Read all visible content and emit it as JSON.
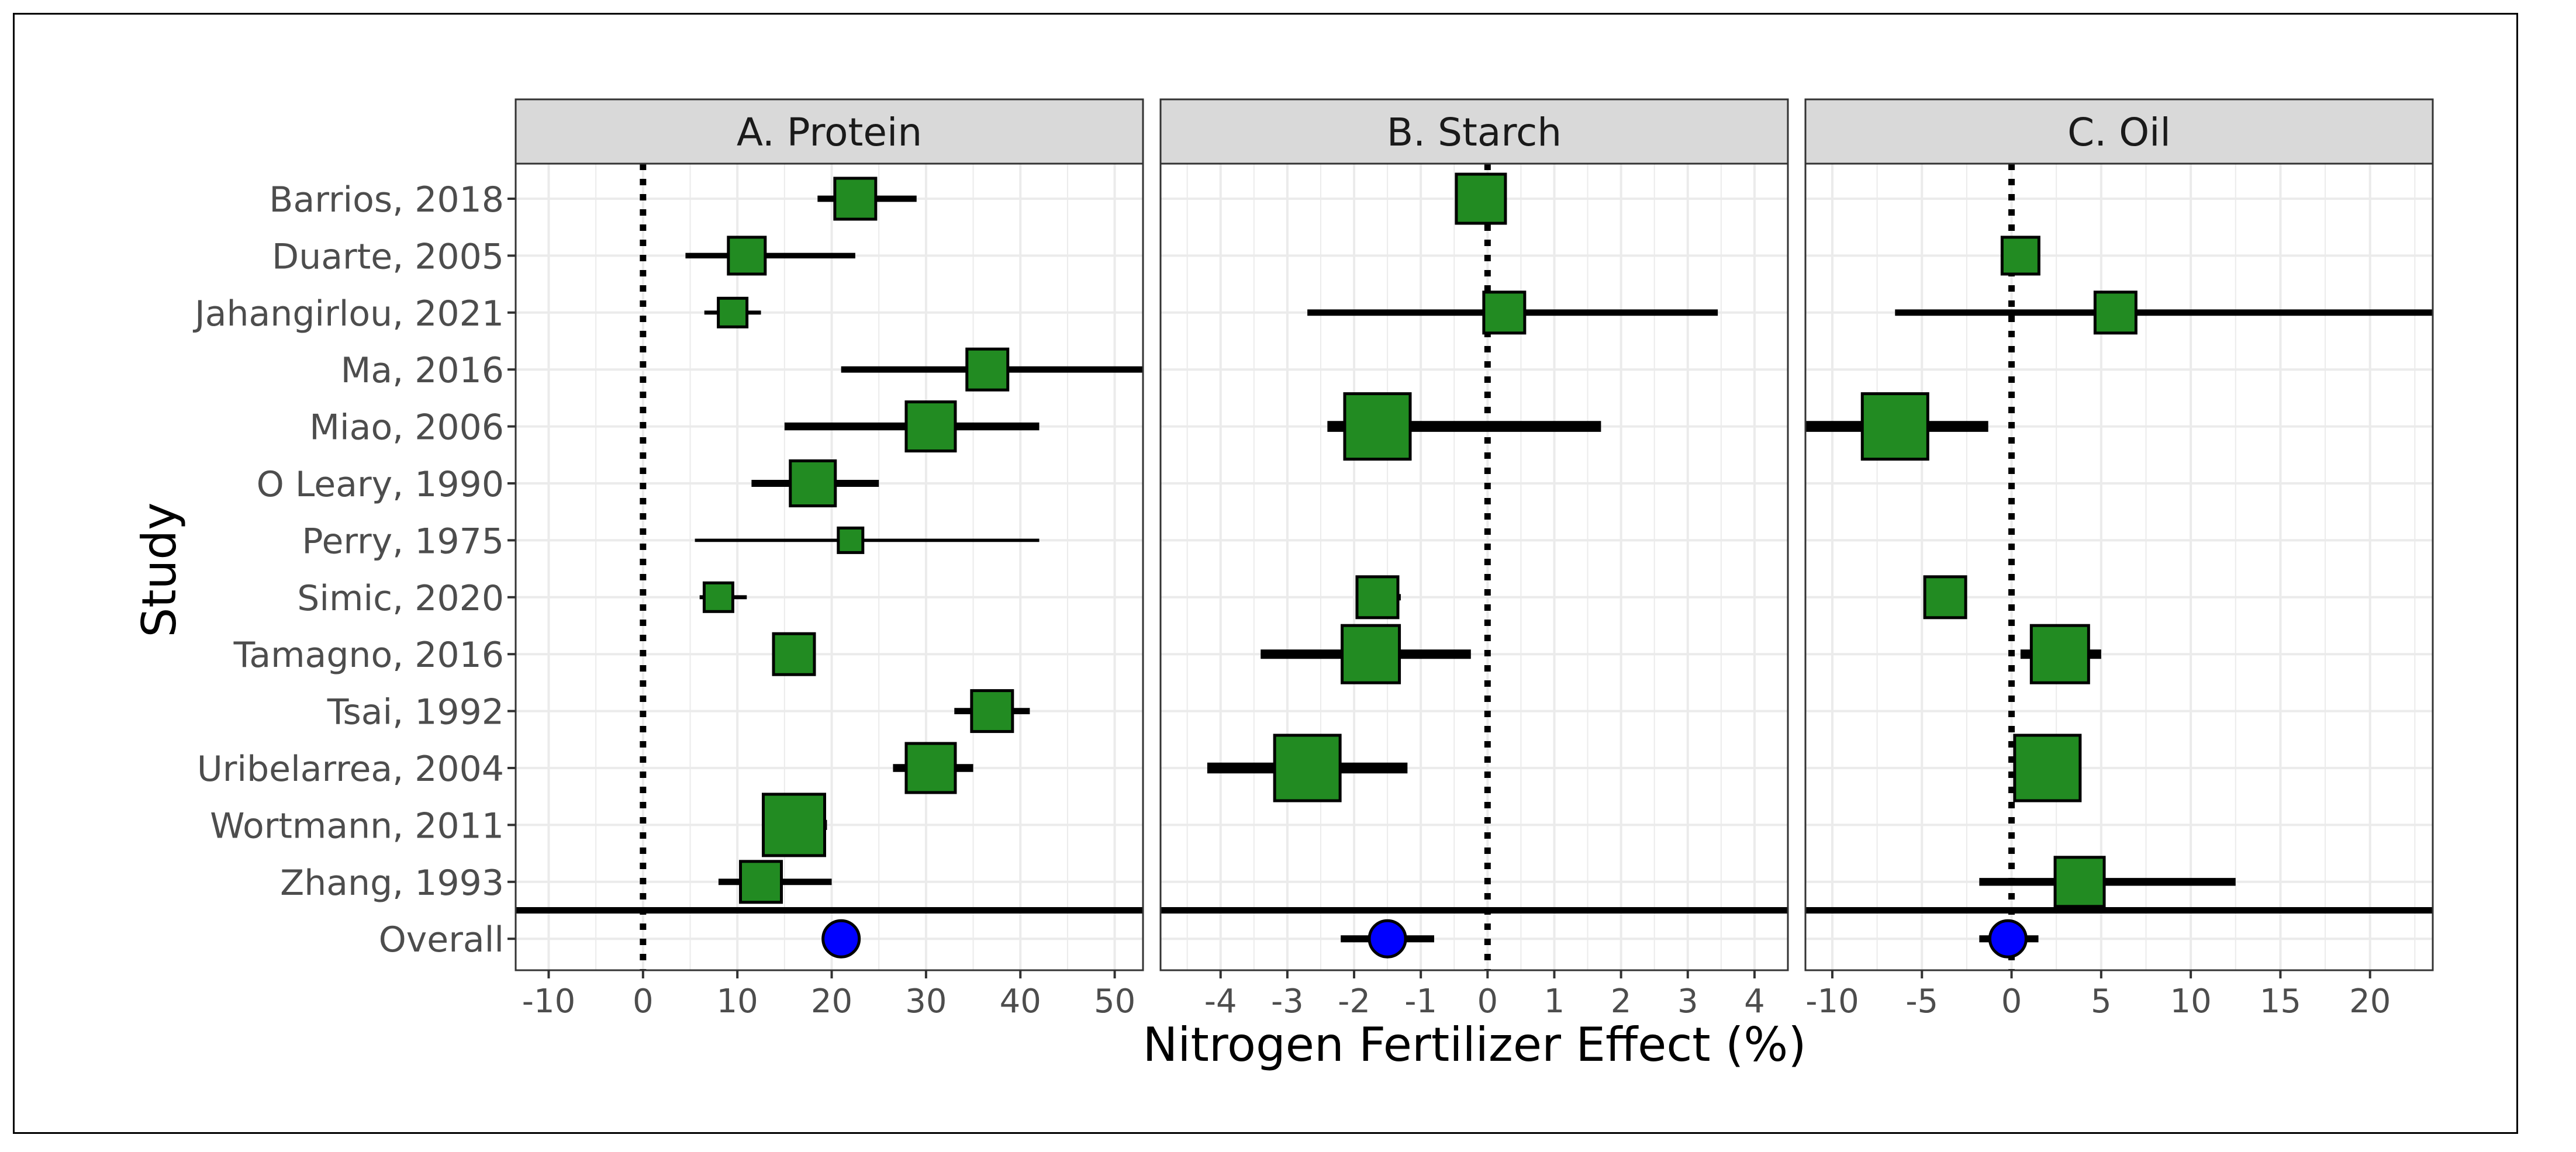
{
  "chart_data": {
    "type": "forest",
    "ylabel": "Study",
    "xlabel": "Nitrogen Fertilizer Effect (%)",
    "studies": [
      "Barrios, 2018",
      "Duarte, 2005",
      "Jahangirlou, 2021",
      "Ma, 2016",
      "Miao, 2006",
      "O Leary, 1990",
      "Perry, 1975",
      "Simic, 2020",
      "Tamagno, 2016",
      "Tsai, 1992",
      "Uribelarrea, 2004",
      "Wortmann, 2011",
      "Zhang, 1993",
      "Overall"
    ],
    "panels": [
      {
        "title": "A. Protein",
        "xlim": [
          -13.5,
          53
        ],
        "ticks": [
          -10,
          0,
          10,
          20,
          30,
          40,
          50
        ],
        "estimates": [
          {
            "study": "Barrios, 2018",
            "value": 22.5,
            "lower": 18.5,
            "upper": 29,
            "weight": 3
          },
          {
            "study": "Duarte, 2005",
            "value": 11,
            "lower": 4.5,
            "upper": 22.5,
            "weight": 2.5
          },
          {
            "study": "Jahangirlou, 2021",
            "value": 9.5,
            "lower": 6.5,
            "upper": 12.5,
            "weight": 1.5
          },
          {
            "study": "Ma, 2016",
            "value": 36.5,
            "lower": 21,
            "upper": 53,
            "weight": 3
          },
          {
            "study": "Miao, 2006",
            "value": 30.5,
            "lower": 15,
            "upper": 42,
            "weight": 4
          },
          {
            "study": "O Leary, 1990",
            "value": 18,
            "lower": 11.5,
            "upper": 25,
            "weight": 3.5
          },
          {
            "study": "Perry, 1975",
            "value": 22,
            "lower": 5.5,
            "upper": 42,
            "weight": 1
          },
          {
            "study": "Simic, 2020",
            "value": 8,
            "lower": 6,
            "upper": 11,
            "weight": 1.5
          },
          {
            "study": "Tamagno, 2016",
            "value": 16,
            "lower": 14.5,
            "upper": 18,
            "weight": 3
          },
          {
            "study": "Tsai, 1992",
            "value": 37,
            "lower": 33,
            "upper": 41,
            "weight": 3
          },
          {
            "study": "Uribelarrea, 2004",
            "value": 30.5,
            "lower": 26.5,
            "upper": 35,
            "weight": 4
          },
          {
            "study": "Wortmann, 2011",
            "value": 16,
            "lower": 13,
            "upper": 19.5,
            "weight": 5.5
          },
          {
            "study": "Zhang, 1993",
            "value": 12.5,
            "lower": 8,
            "upper": 20,
            "weight": 3
          }
        ],
        "overall": {
          "value": 21,
          "lower": 21,
          "upper": 21
        }
      },
      {
        "title": "B. Starch",
        "xlim": [
          -4.9,
          4.5
        ],
        "ticks": [
          -4,
          -3,
          -2,
          -1,
          0,
          1,
          2,
          3,
          4
        ],
        "estimates": [
          {
            "study": "Barrios, 2018",
            "value": -0.1,
            "lower": -0.1,
            "upper": -0.1,
            "weight": 4
          },
          {
            "study": "Jahangirlou, 2021",
            "value": 0.25,
            "lower": -2.7,
            "upper": 3.45,
            "weight": 3
          },
          {
            "study": "Miao, 2006",
            "value": -1.65,
            "lower": -2.4,
            "upper": 1.7,
            "weight": 6
          },
          {
            "study": "Simic, 2020",
            "value": -1.65,
            "lower": -1.95,
            "upper": -1.3,
            "weight": 3
          },
          {
            "study": "Tamagno, 2016",
            "value": -1.75,
            "lower": -3.4,
            "upper": -0.25,
            "weight": 5
          },
          {
            "study": "Uribelarrea, 2004",
            "value": -2.7,
            "lower": -4.2,
            "upper": -1.2,
            "weight": 6
          }
        ],
        "overall": {
          "value": -1.5,
          "lower": -2.2,
          "upper": -0.8
        }
      },
      {
        "title": "C. Oil",
        "xlim": [
          -11.5,
          23.5
        ],
        "ticks": [
          -10,
          -5,
          0,
          5,
          10,
          15,
          20
        ],
        "estimates": [
          {
            "study": "Duarte, 2005",
            "value": 0.5,
            "lower": -0.5,
            "upper": 1.5,
            "weight": 2.5
          },
          {
            "study": "Jahangirlou, 2021",
            "value": 5.8,
            "lower": -6.5,
            "upper": 23.5,
            "weight": 3
          },
          {
            "study": "Miao, 2006",
            "value": -6.5,
            "lower": -11.5,
            "upper": -1.3,
            "weight": 6
          },
          {
            "study": "Simic, 2020",
            "value": -3.7,
            "lower": -4.5,
            "upper": -2.7,
            "weight": 3
          },
          {
            "study": "Tamagno, 2016",
            "value": 2.7,
            "lower": 0.5,
            "upper": 5,
            "weight": 5
          },
          {
            "study": "Uribelarrea, 2004",
            "value": 2,
            "lower": 2,
            "upper": 2,
            "weight": 6
          },
          {
            "study": "Zhang, 1993",
            "value": 3.8,
            "lower": -1.8,
            "upper": 12.5,
            "weight": 4
          }
        ],
        "overall": {
          "value": -0.2,
          "lower": -1.8,
          "upper": 1.5
        }
      }
    ],
    "colors": {
      "study_marker": "#228b22",
      "overall_marker": "#0000ff",
      "strip": "#d9d9d9",
      "grid": "#ebebeb"
    }
  }
}
